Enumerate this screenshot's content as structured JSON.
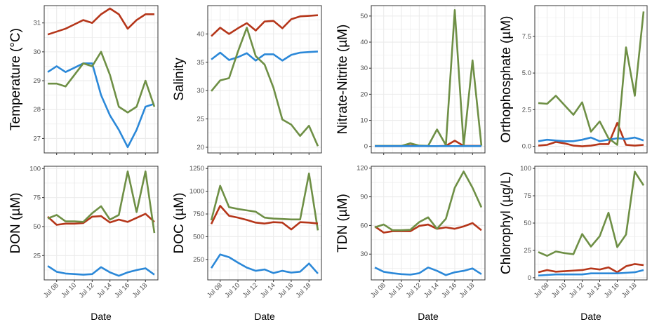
{
  "figure": {
    "x_axis_title": "Date",
    "x_tick_labels": [
      "Jul 08",
      "Jul 10",
      "Jul 12",
      "Jul 14",
      "Jul 16",
      "Jul 18"
    ],
    "series_colors": [
      "#b5361a",
      "#2b88d8",
      "#6e8f45"
    ],
    "panel_background": "#ffffff",
    "grid_color": "#ebebeb",
    "panel_border_color": "#333333"
  },
  "chart_data": [
    {
      "type": "line",
      "ylabel": "Temperature (°C)",
      "ylim": [
        26.5,
        31.6
      ],
      "yticks": [
        27,
        28,
        29,
        30,
        31
      ],
      "yticklabels": [
        "27",
        "28",
        "29",
        "30",
        "31"
      ],
      "x": [
        7,
        8,
        9,
        10,
        11,
        12,
        13,
        14,
        15,
        16,
        17,
        18,
        19
      ],
      "xlim": [
        6.6,
        19.4
      ],
      "xtick_values": [
        8,
        10,
        12,
        14,
        16,
        18
      ],
      "series": [
        {
          "color": "#b5361a",
          "values": [
            30.6,
            30.7,
            30.8,
            30.95,
            31.1,
            31.0,
            31.3,
            31.5,
            31.3,
            30.8,
            31.1,
            31.3,
            31.3
          ]
        },
        {
          "color": "#2b88d8",
          "values": [
            29.3,
            29.5,
            29.3,
            29.45,
            29.6,
            29.6,
            28.5,
            27.8,
            27.3,
            26.7,
            27.3,
            28.1,
            28.2
          ]
        },
        {
          "color": "#6e8f45",
          "values": [
            28.9,
            28.9,
            28.8,
            29.2,
            29.6,
            29.5,
            30.0,
            29.2,
            28.1,
            27.9,
            28.1,
            29.0,
            28.1
          ]
        }
      ]
    },
    {
      "type": "line",
      "ylabel": "Salinity",
      "ylim": [
        19,
        45
      ],
      "yticks": [
        20,
        25,
        30,
        35,
        40
      ],
      "yticklabels": [
        "20",
        "25",
        "30",
        "35",
        "40"
      ],
      "x": [
        7,
        8,
        9,
        10,
        11,
        12,
        13,
        14,
        15,
        16,
        17,
        18,
        19
      ],
      "xlim": [
        6.6,
        19.4
      ],
      "xtick_values": [
        8,
        10,
        12,
        14,
        16,
        18
      ],
      "series": [
        {
          "color": "#b5361a",
          "values": [
            39.6,
            41.1,
            40.0,
            41.0,
            41.9,
            40.6,
            42.2,
            42.3,
            41.0,
            42.6,
            43.1,
            43.2,
            43.3
          ]
        },
        {
          "color": "#2b88d8",
          "values": [
            35.5,
            36.7,
            35.4,
            35.9,
            36.6,
            35.3,
            36.4,
            36.4,
            35.3,
            36.3,
            36.7,
            36.8,
            36.9
          ]
        },
        {
          "color": "#6e8f45",
          "values": [
            29.9,
            31.8,
            32.2,
            36.9,
            41.1,
            36.1,
            34.6,
            30.5,
            24.9,
            24.0,
            22.0,
            23.8,
            20.2
          ]
        }
      ]
    },
    {
      "type": "line",
      "ylabel": "Nitrate-Nitrite (µM)",
      "ylim": [
        -2.5,
        54
      ],
      "yticks": [
        0,
        10,
        20,
        30,
        40,
        50
      ],
      "yticklabels": [
        "0",
        "10",
        "20",
        "30",
        "40",
        "50"
      ],
      "x": [
        7,
        8,
        9,
        10,
        11,
        12,
        13,
        14,
        15,
        16,
        17,
        18,
        19
      ],
      "xlim": [
        6.6,
        19.4
      ],
      "xtick_values": [
        8,
        10,
        12,
        14,
        16,
        18
      ],
      "series": [
        {
          "color": "#b5361a",
          "values": [
            0.1,
            0.1,
            0.1,
            0.1,
            0.3,
            0.2,
            0.1,
            0.1,
            0.2,
            2.2,
            0.2,
            0.2,
            0.2
          ]
        },
        {
          "color": "#6e8f45",
          "values": [
            0.2,
            0.2,
            0.2,
            0.2,
            1.2,
            0.3,
            0.2,
            6.5,
            0.5,
            52.3,
            0.3,
            33.0,
            0.3
          ]
        },
        {
          "color": "#2b88d8",
          "values": [
            0.1,
            0.1,
            0.1,
            0.1,
            0.1,
            0.1,
            0.1,
            0.1,
            0.1,
            0.1,
            0.1,
            0.1,
            0.1
          ]
        }
      ]
    },
    {
      "type": "line",
      "ylabel": "Orthophosphate (µM)",
      "ylim": [
        -0.45,
        9.6
      ],
      "yticks": [
        0,
        2.5,
        5,
        7.5
      ],
      "yticklabels": [
        "0.0",
        "2.5",
        "5.0",
        "7.5"
      ],
      "x": [
        7,
        8,
        9,
        10,
        11,
        12,
        13,
        14,
        15,
        16,
        17,
        18,
        19
      ],
      "xlim": [
        6.6,
        19.4
      ],
      "xtick_values": [
        8,
        10,
        12,
        14,
        16,
        18
      ],
      "series": [
        {
          "color": "#b5361a",
          "values": [
            0.05,
            0.1,
            0.3,
            0.2,
            0.05,
            0.0,
            0.05,
            0.15,
            0.15,
            1.6,
            0.1,
            0.05,
            0.1
          ]
        },
        {
          "color": "#2b88d8",
          "values": [
            0.35,
            0.45,
            0.4,
            0.35,
            0.35,
            0.45,
            0.6,
            0.35,
            0.45,
            0.55,
            0.5,
            0.6,
            0.4
          ]
        },
        {
          "color": "#6e8f45",
          "values": [
            2.95,
            2.9,
            3.45,
            2.8,
            2.15,
            3.0,
            1.0,
            1.7,
            0.55,
            0.1,
            6.75,
            3.45,
            9.2
          ]
        }
      ]
    },
    {
      "type": "line",
      "ylabel": "DON (µM)",
      "ylim": [
        4,
        102
      ],
      "yticks": [
        25,
        50,
        75,
        100
      ],
      "yticklabels": [
        "25",
        "50",
        "75",
        "100"
      ],
      "x": [
        7,
        8,
        9,
        10,
        11,
        12,
        13,
        14,
        15,
        16,
        17,
        18,
        19
      ],
      "xlim": [
        6.6,
        19.4
      ],
      "xtick_values": [
        8,
        10,
        12,
        14,
        16,
        18
      ],
      "xlabel": "Date",
      "series": [
        {
          "color": "#b5361a",
          "values": [
            58.5,
            51.5,
            52.5,
            52.5,
            53.0,
            58.5,
            59.0,
            53.5,
            56.0,
            54.0,
            57.5,
            61.0,
            54.0
          ]
        },
        {
          "color": "#6e8f45",
          "values": [
            57.0,
            60.0,
            54.5,
            54.5,
            54.0,
            61.5,
            67.5,
            56.0,
            60.0,
            97.5,
            62.5,
            97.5,
            44.5
          ]
        },
        {
          "color": "#2b88d8",
          "values": [
            16.0,
            11.0,
            9.5,
            9.0,
            8.5,
            9.0,
            15.0,
            10.5,
            7.5,
            10.5,
            12.5,
            14.0,
            8.5
          ]
        }
      ]
    },
    {
      "type": "line",
      "ylabel": "DOC (µM)",
      "ylim": [
        25,
        1275
      ],
      "yticks": [
        250,
        500,
        750,
        1000,
        1250
      ],
      "yticklabels": [
        "250",
        "500",
        "750",
        "1000",
        "1250"
      ],
      "x": [
        7,
        8,
        9,
        10,
        11,
        12,
        13,
        14,
        15,
        16,
        17,
        18,
        19
      ],
      "xlim": [
        6.6,
        19.4
      ],
      "xtick_values": [
        8,
        10,
        12,
        14,
        16,
        18
      ],
      "xlabel": "Date",
      "series": [
        {
          "color": "#6e8f45",
          "values": [
            680,
            1060,
            825,
            805,
            790,
            775,
            710,
            700,
            695,
            690,
            690,
            1195,
            570
          ]
        },
        {
          "color": "#b5361a",
          "values": [
            640,
            840,
            730,
            710,
            685,
            655,
            645,
            660,
            655,
            580,
            660,
            655,
            645
          ]
        },
        {
          "color": "#2b88d8",
          "values": [
            155,
            305,
            275,
            215,
            160,
            125,
            140,
            100,
            125,
            105,
            115,
            205,
            95
          ]
        }
      ]
    },
    {
      "type": "line",
      "ylabel": "TDN (µM)",
      "ylim": [
        3,
        122
      ],
      "yticks": [
        30,
        60,
        90,
        120
      ],
      "yticklabels": [
        "30",
        "60",
        "90",
        "120"
      ],
      "x": [
        7,
        8,
        9,
        10,
        11,
        12,
        13,
        14,
        15,
        16,
        17,
        18,
        19
      ],
      "xlim": [
        6.6,
        19.4
      ],
      "xtick_values": [
        8,
        10,
        12,
        14,
        16,
        18
      ],
      "xlabel": "Date",
      "series": [
        {
          "color": "#b5361a",
          "values": [
            59.0,
            52.5,
            54.0,
            54.0,
            54.0,
            59.5,
            61.0,
            56.5,
            58.0,
            56.5,
            59.0,
            62.5,
            55.0
          ]
        },
        {
          "color": "#6e8f45",
          "values": [
            58.0,
            61.0,
            55.0,
            55.0,
            55.5,
            63.5,
            68.5,
            56.5,
            67.0,
            99.5,
            116.5,
            99.5,
            79.0
          ]
        },
        {
          "color": "#2b88d8",
          "values": [
            16.0,
            11.5,
            10.0,
            9.0,
            8.5,
            10.0,
            16.0,
            12.5,
            8.0,
            11.0,
            12.5,
            15.0,
            9.0
          ]
        }
      ]
    },
    {
      "type": "line",
      "ylabel": "Chlorophyl (µg/L)",
      "ylim": [
        -2,
        102
      ],
      "yticks": [
        0,
        25,
        50,
        75,
        100
      ],
      "yticklabels": [
        "0",
        "25",
        "50",
        "75",
        "100"
      ],
      "x": [
        7,
        8,
        9,
        10,
        11,
        12,
        13,
        14,
        15,
        16,
        17,
        18,
        19
      ],
      "xlim": [
        6.6,
        19.4
      ],
      "xtick_values": [
        8,
        10,
        12,
        14,
        16,
        18
      ],
      "xlabel": "Date",
      "series": [
        {
          "color": "#6e8f45",
          "values": [
            23.5,
            20.0,
            24.0,
            22.5,
            21.5,
            40.0,
            28.5,
            38.0,
            59.5,
            28.0,
            39.5,
            97.0,
            84.5
          ]
        },
        {
          "color": "#b5361a",
          "values": [
            5.0,
            7.0,
            5.5,
            6.0,
            6.5,
            7.0,
            8.5,
            7.5,
            9.5,
            5.0,
            10.5,
            12.5,
            11.5
          ]
        },
        {
          "color": "#2b88d8",
          "values": [
            2.0,
            2.5,
            3.0,
            3.0,
            3.0,
            3.0,
            4.0,
            4.0,
            4.0,
            4.0,
            4.5,
            5.0,
            7.0
          ]
        }
      ]
    }
  ]
}
